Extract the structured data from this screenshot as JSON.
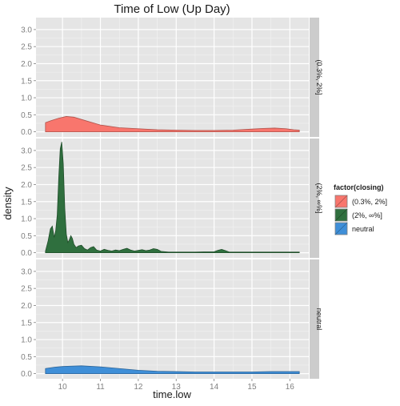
{
  "chart_data": {
    "type": "area",
    "title": "Time of Low (Up Day)",
    "xlabel": "time.low",
    "ylabel": "density",
    "xlim": [
      9.3,
      16.5
    ],
    "ylim": [
      -0.15,
      3.35
    ],
    "x_ticks": [
      "10",
      "11",
      "12",
      "13",
      "14",
      "15",
      "16"
    ],
    "y_ticks": [
      "0.0",
      "0.5",
      "1.0",
      "1.5",
      "2.0",
      "2.5",
      "3.0"
    ],
    "grid": true,
    "legend": {
      "title": "factor(closing)",
      "placement": "right",
      "entries": [
        "(0.3%, 2%]",
        "(2%, ∞%]",
        "neutral"
      ]
    },
    "panels": [
      {
        "strip": "(0.3%, 2%]",
        "series": "(0.3%, 2%]",
        "color": "#f8766d",
        "x": [
          9.55,
          9.7,
          9.9,
          10.1,
          10.3,
          10.6,
          11.0,
          11.5,
          12.0,
          12.5,
          13.0,
          13.5,
          14.0,
          14.5,
          15.0,
          15.3,
          15.6,
          15.9,
          16.1,
          16.25
        ],
        "y": [
          0.27,
          0.33,
          0.4,
          0.45,
          0.43,
          0.33,
          0.2,
          0.12,
          0.09,
          0.06,
          0.05,
          0.04,
          0.04,
          0.05,
          0.08,
          0.1,
          0.11,
          0.09,
          0.06,
          0.05
        ]
      },
      {
        "strip": "(2%, ∞%]",
        "series": "(2%, ∞%]",
        "color": "#2f6f3e",
        "x": [
          9.55,
          9.62,
          9.68,
          9.73,
          9.78,
          9.82,
          9.86,
          9.9,
          9.94,
          9.98,
          10.02,
          10.06,
          10.1,
          10.14,
          10.18,
          10.22,
          10.26,
          10.3,
          10.36,
          10.42,
          10.5,
          10.58,
          10.66,
          10.74,
          10.82,
          10.9,
          11.0,
          11.1,
          11.2,
          11.3,
          11.4,
          11.5,
          11.6,
          11.7,
          11.8,
          11.9,
          12.0,
          12.1,
          12.2,
          12.3,
          12.4,
          12.5,
          12.6,
          12.8,
          13.0,
          13.5,
          14.0,
          14.1,
          14.2,
          14.3,
          14.4,
          15.0,
          15.5,
          16.0,
          16.25
        ],
        "y": [
          0.05,
          0.35,
          0.7,
          0.78,
          0.45,
          0.65,
          1.1,
          2.2,
          3.05,
          3.25,
          2.6,
          1.3,
          0.55,
          0.3,
          0.38,
          0.5,
          0.42,
          0.25,
          0.15,
          0.2,
          0.22,
          0.12,
          0.08,
          0.15,
          0.18,
          0.08,
          0.05,
          0.1,
          0.07,
          0.05,
          0.08,
          0.06,
          0.1,
          0.13,
          0.08,
          0.05,
          0.07,
          0.09,
          0.06,
          0.08,
          0.12,
          0.1,
          0.04,
          0.02,
          0.02,
          0.02,
          0.03,
          0.07,
          0.1,
          0.06,
          0.02,
          0.02,
          0.02,
          0.02,
          0.02
        ]
      },
      {
        "strip": "neutral",
        "series": "neutral",
        "color": "#3f8fd8",
        "x": [
          9.55,
          9.8,
          10.0,
          10.2,
          10.5,
          11.0,
          11.5,
          12.0,
          12.5,
          13.0,
          13.5,
          14.0,
          14.5,
          15.0,
          15.5,
          16.0,
          16.25
        ],
        "y": [
          0.15,
          0.19,
          0.21,
          0.22,
          0.23,
          0.2,
          0.15,
          0.1,
          0.07,
          0.06,
          0.05,
          0.05,
          0.05,
          0.05,
          0.06,
          0.06,
          0.06
        ]
      }
    ]
  }
}
